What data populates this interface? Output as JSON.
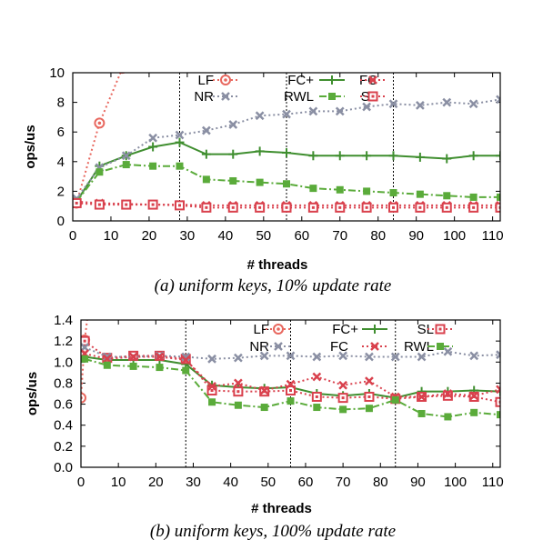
{
  "chart_data": [
    {
      "type": "line",
      "caption": "(a) uniform keys, 10% update rate",
      "xlabel": "# threads",
      "ylabel": "ops/us",
      "xlim": [
        0,
        112
      ],
      "ylim": [
        0,
        10
      ],
      "xticks": [
        0,
        10,
        20,
        30,
        40,
        50,
        60,
        70,
        80,
        90,
        100,
        110
      ],
      "yticks": [
        0,
        2,
        4,
        6,
        8,
        10
      ],
      "vlines": [
        28,
        56,
        84
      ],
      "legend_order": [
        "LF",
        "FC+",
        "FC",
        "NR",
        "RWL",
        "SL"
      ],
      "series": [
        {
          "name": "LF",
          "color": "#e8675e",
          "marker": "circle-dot",
          "dash": "2,3",
          "points": [
            [
              1,
              1.2
            ],
            [
              7,
              6.6
            ],
            [
              13,
              10.3
            ]
          ]
        },
        {
          "name": "FC+",
          "color": "#3f8e2f",
          "marker": "plus",
          "dash": "",
          "points": [
            [
              1,
              1.3
            ],
            [
              7,
              3.7
            ],
            [
              14,
              4.4
            ],
            [
              21,
              5.0
            ],
            [
              28,
              5.3
            ],
            [
              35,
              4.5
            ],
            [
              42,
              4.5
            ],
            [
              49,
              4.7
            ],
            [
              56,
              4.6
            ],
            [
              63,
              4.4
            ],
            [
              70,
              4.4
            ],
            [
              77,
              4.4
            ],
            [
              84,
              4.4
            ],
            [
              91,
              4.3
            ],
            [
              98,
              4.2
            ],
            [
              105,
              4.4
            ],
            [
              112,
              4.4
            ]
          ]
        },
        {
          "name": "FC",
          "color": "#d9414d",
          "marker": "x",
          "dash": "2,3",
          "points": [
            [
              1,
              1.3
            ],
            [
              7,
              1.2
            ],
            [
              14,
              1.15
            ],
            [
              21,
              1.1
            ],
            [
              28,
              1.1
            ],
            [
              35,
              1.05
            ],
            [
              42,
              1.05
            ],
            [
              49,
              1.05
            ],
            [
              56,
              1.05
            ],
            [
              63,
              1.05
            ],
            [
              70,
              1.05
            ],
            [
              77,
              1.05
            ],
            [
              84,
              1.05
            ],
            [
              91,
              1.05
            ],
            [
              98,
              1.05
            ],
            [
              105,
              1.05
            ],
            [
              112,
              1.05
            ]
          ]
        },
        {
          "name": "NR",
          "color": "#8a8fa3",
          "marker": "x",
          "dash": "2,3",
          "points": [
            [
              1,
              1.5
            ],
            [
              7,
              3.6
            ],
            [
              14,
              4.4
            ],
            [
              21,
              5.6
            ],
            [
              28,
              5.8
            ],
            [
              35,
              6.1
            ],
            [
              42,
              6.5
            ],
            [
              49,
              7.1
            ],
            [
              56,
              7.2
            ],
            [
              63,
              7.4
            ],
            [
              70,
              7.4
            ],
            [
              77,
              7.7
            ],
            [
              84,
              7.9
            ],
            [
              91,
              7.8
            ],
            [
              98,
              8.0
            ],
            [
              105,
              7.9
            ],
            [
              112,
              8.2
            ]
          ]
        },
        {
          "name": "RWL",
          "color": "#5aab3a",
          "marker": "square",
          "dash": "8,3,2,3",
          "points": [
            [
              1,
              1.3
            ],
            [
              7,
              3.3
            ],
            [
              14,
              3.8
            ],
            [
              21,
              3.7
            ],
            [
              28,
              3.7
            ],
            [
              35,
              2.8
            ],
            [
              42,
              2.7
            ],
            [
              49,
              2.6
            ],
            [
              56,
              2.5
            ],
            [
              63,
              2.2
            ],
            [
              70,
              2.1
            ],
            [
              77,
              2.0
            ],
            [
              84,
              1.9
            ],
            [
              91,
              1.8
            ],
            [
              98,
              1.7
            ],
            [
              105,
              1.6
            ],
            [
              112,
              1.6
            ]
          ]
        },
        {
          "name": "SL",
          "color": "#d9414d",
          "marker": "square-open",
          "dash": "2,3",
          "points": [
            [
              1,
              1.2
            ],
            [
              7,
              1.1
            ],
            [
              14,
              1.1
            ],
            [
              21,
              1.1
            ],
            [
              28,
              1.05
            ],
            [
              35,
              0.9
            ],
            [
              42,
              0.9
            ],
            [
              49,
              0.9
            ],
            [
              56,
              0.9
            ],
            [
              63,
              0.9
            ],
            [
              70,
              0.9
            ],
            [
              77,
              0.9
            ],
            [
              84,
              0.9
            ],
            [
              91,
              0.9
            ],
            [
              98,
              0.9
            ],
            [
              105,
              0.9
            ],
            [
              112,
              0.9
            ]
          ]
        }
      ]
    },
    {
      "type": "line",
      "caption": "(b) uniform keys, 100% update rate",
      "xlabel": "# threads",
      "ylabel": "ops/us",
      "xlim": [
        0,
        112
      ],
      "ylim": [
        0,
        1.4
      ],
      "xticks": [
        0,
        10,
        20,
        30,
        40,
        50,
        60,
        70,
        80,
        90,
        100,
        110
      ],
      "yticks": [
        0.0,
        0.2,
        0.4,
        0.6,
        0.8,
        1.0,
        1.2,
        1.4
      ],
      "vlines": [
        28,
        56,
        84
      ],
      "legend_order": [
        "LF",
        "FC+",
        "SL",
        "NR",
        "FC",
        "RWL"
      ],
      "series": [
        {
          "name": "LF",
          "color": "#e8675e",
          "marker": "circle-dot",
          "dash": "2,3",
          "points": [
            [
              0,
              0.66
            ],
            [
              1,
              1.21
            ],
            [
              2,
              1.5
            ]
          ]
        },
        {
          "name": "FC+",
          "color": "#3f8e2f",
          "marker": "plus",
          "dash": "",
          "points": [
            [
              1,
              1.05
            ],
            [
              7,
              1.02
            ],
            [
              14,
              1.02
            ],
            [
              21,
              1.02
            ],
            [
              28,
              0.98
            ],
            [
              35,
              0.78
            ],
            [
              42,
              0.76
            ],
            [
              49,
              0.75
            ],
            [
              56,
              0.76
            ],
            [
              63,
              0.7
            ],
            [
              70,
              0.68
            ],
            [
              77,
              0.7
            ],
            [
              84,
              0.66
            ],
            [
              91,
              0.72
            ],
            [
              98,
              0.72
            ],
            [
              105,
              0.73
            ],
            [
              112,
              0.72
            ]
          ]
        },
        {
          "name": "SL",
          "color": "#d9414d",
          "marker": "square-open",
          "dash": "2,3",
          "points": [
            [
              1,
              1.2
            ],
            [
              7,
              1.04
            ],
            [
              14,
              1.06
            ],
            [
              21,
              1.06
            ],
            [
              28,
              1.03
            ],
            [
              35,
              0.73
            ],
            [
              42,
              0.72
            ],
            [
              49,
              0.72
            ],
            [
              56,
              0.73
            ],
            [
              63,
              0.67
            ],
            [
              70,
              0.66
            ],
            [
              77,
              0.67
            ],
            [
              84,
              0.65
            ],
            [
              91,
              0.67
            ],
            [
              98,
              0.68
            ],
            [
              105,
              0.67
            ],
            [
              112,
              0.62
            ]
          ]
        },
        {
          "name": "NR",
          "color": "#8a8fa3",
          "marker": "x",
          "dash": "2,3",
          "points": [
            [
              1,
              1.14
            ],
            [
              7,
              1.05
            ],
            [
              14,
              1.05
            ],
            [
              21,
              1.06
            ],
            [
              28,
              1.05
            ],
            [
              35,
              1.03
            ],
            [
              42,
              1.04
            ],
            [
              49,
              1.06
            ],
            [
              56,
              1.06
            ],
            [
              63,
              1.05
            ],
            [
              70,
              1.06
            ],
            [
              77,
              1.05
            ],
            [
              84,
              1.05
            ],
            [
              91,
              1.05
            ],
            [
              98,
              1.1
            ],
            [
              105,
              1.06
            ],
            [
              112,
              1.07
            ]
          ]
        },
        {
          "name": "FC",
          "color": "#d9414d",
          "marker": "x",
          "dash": "2,3",
          "points": [
            [
              1,
              1.08
            ],
            [
              7,
              1.03
            ],
            [
              14,
              1.05
            ],
            [
              21,
              1.05
            ],
            [
              28,
              1.02
            ],
            [
              35,
              0.77
            ],
            [
              42,
              0.8
            ],
            [
              49,
              0.73
            ],
            [
              56,
              0.79
            ],
            [
              63,
              0.86
            ],
            [
              70,
              0.78
            ],
            [
              77,
              0.82
            ],
            [
              84,
              0.67
            ],
            [
              91,
              0.67
            ],
            [
              98,
              0.7
            ],
            [
              105,
              0.68
            ],
            [
              112,
              0.74
            ]
          ]
        },
        {
          "name": "RWL",
          "color": "#5aab3a",
          "marker": "square",
          "dash": "8,3,2,3",
          "points": [
            [
              1,
              1.03
            ],
            [
              7,
              0.97
            ],
            [
              14,
              0.96
            ],
            [
              21,
              0.95
            ],
            [
              28,
              0.92
            ],
            [
              35,
              0.62
            ],
            [
              42,
              0.59
            ],
            [
              49,
              0.57
            ],
            [
              56,
              0.63
            ],
            [
              63,
              0.57
            ],
            [
              70,
              0.55
            ],
            [
              77,
              0.56
            ],
            [
              84,
              0.64
            ],
            [
              91,
              0.51
            ],
            [
              98,
              0.48
            ],
            [
              105,
              0.52
            ],
            [
              112,
              0.5
            ]
          ]
        }
      ]
    }
  ]
}
